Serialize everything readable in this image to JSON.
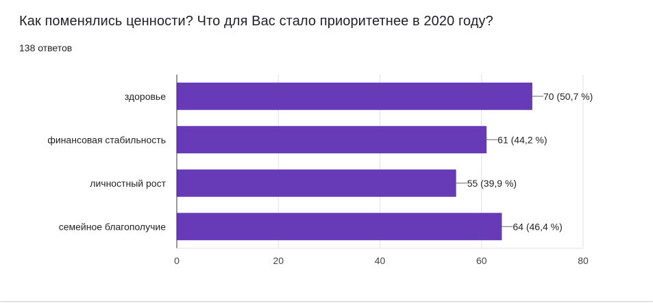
{
  "header": {
    "title": "Как поменялись ценности? Что для Вас стало приоритетнее в 2020 году?",
    "response_count": "138 ответов"
  },
  "colors": {
    "bar": "#673ab7",
    "grid": "#e0e0e0",
    "axis": "#333333",
    "leader": "#666666"
  },
  "chart_data": {
    "type": "bar",
    "orientation": "horizontal",
    "title": "Как поменялись ценности? Что для Вас стало приоритетнее в 2020 году?",
    "categories": [
      "здоровье",
      "финансовая стабильность",
      "личностный рост",
      "семейное благополучие"
    ],
    "values": [
      70,
      61,
      55,
      64
    ],
    "data_labels": [
      "70 (50,7 %)",
      "61 (44,2 %)",
      "55 (39,9 %)",
      "64 (46,4 %)"
    ],
    "xlim": [
      0,
      80
    ],
    "xticks": [
      0,
      20,
      40,
      60,
      80
    ],
    "xtick_labels": [
      "0",
      "20",
      "40",
      "60",
      "80"
    ],
    "xlabel": "",
    "ylabel": "",
    "grid": true,
    "legend": "none"
  }
}
